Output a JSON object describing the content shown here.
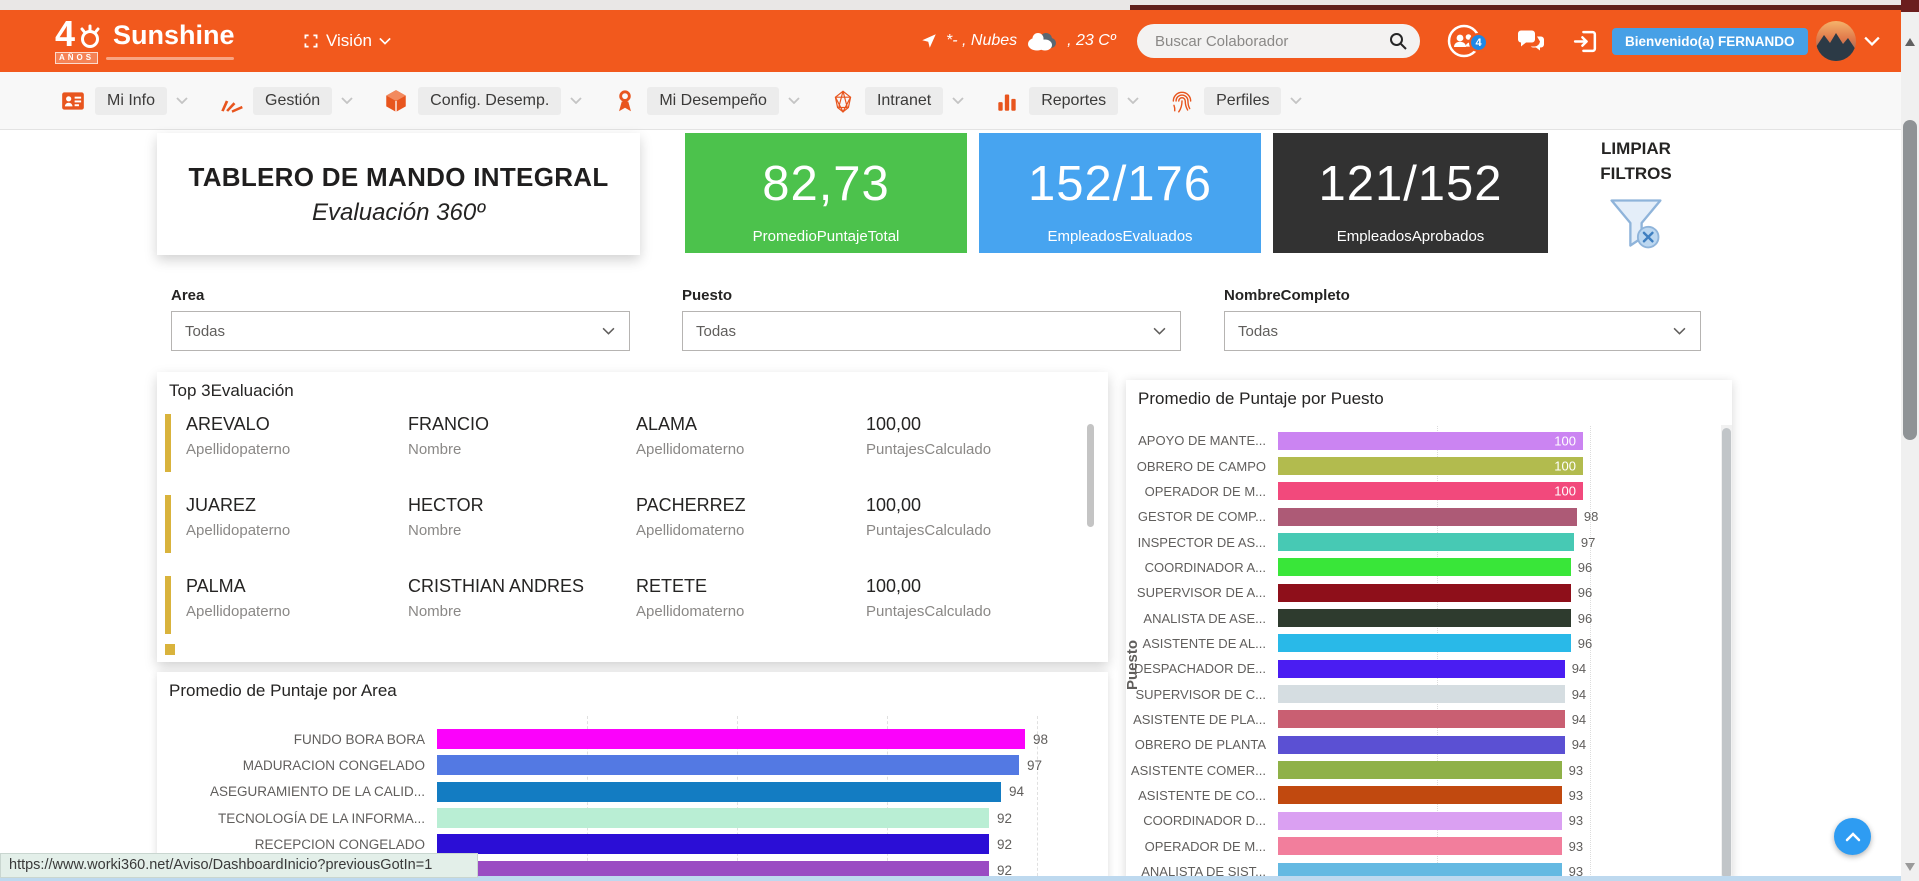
{
  "header": {
    "logo": {
      "number": "4",
      "name": "Sunshine",
      "years": "AÑOS"
    },
    "vision": "Visión",
    "weather": {
      "part1": "*- , Nubes",
      "part2": ", 23 Cº"
    },
    "search": {
      "placeholder": "Buscar Colaborador"
    },
    "notifications_badge": "4",
    "welcome": "Bienvenido(a) FERNANDO",
    "accent_color": "#f2591d"
  },
  "nav": {
    "items": [
      {
        "id": "mi-info",
        "label": "Mi Info",
        "icon": "id-card"
      },
      {
        "id": "gestion",
        "label": "Gestión",
        "icon": "fan"
      },
      {
        "id": "config-desemp",
        "label": "Config. Desemp.",
        "icon": "cube"
      },
      {
        "id": "mi-desempeno",
        "label": "Mi Desempeño",
        "icon": "medal"
      },
      {
        "id": "intranet",
        "label": "Intranet",
        "icon": "globe"
      },
      {
        "id": "reportes",
        "label": "Reportes",
        "icon": "bar-chart"
      },
      {
        "id": "perfiles",
        "label": "Perfiles",
        "icon": "fingerprint"
      }
    ]
  },
  "dashboard": {
    "title": "TABLERO DE MANDO INTEGRAL",
    "subtitle": "Evaluación 360º"
  },
  "kpis": [
    {
      "id": "promedio",
      "value": "82,73",
      "label": "PromedioPuntajeTotal",
      "color": "#4cc24c"
    },
    {
      "id": "evaluados",
      "value": "152/176",
      "label": "EmpleadosEvaluados",
      "color": "#47a4f0"
    },
    {
      "id": "aprobados",
      "value": "121/152",
      "label": "EmpleadosAprobados",
      "color": "#323232"
    }
  ],
  "filters": {
    "clear_line1": "LIMPIAR",
    "clear_line2": "FILTROS",
    "items": [
      {
        "id": "area",
        "label": "Area",
        "value": "Todas"
      },
      {
        "id": "puesto",
        "label": "Puesto",
        "value": "Todas"
      },
      {
        "id": "nombre",
        "label": "NombreCompleto",
        "value": "Todas"
      }
    ]
  },
  "chart_data": [
    {
      "id": "top3",
      "type": "table",
      "title": "Top 3Evaluación",
      "accent_color": "#d9b33c",
      "columns": [
        "Apellidopaterno",
        "Nombre",
        "Apellidomaterno",
        "PuntajesCalculado"
      ],
      "rows": [
        [
          "AREVALO",
          "FRANCIO",
          "ALAMA",
          "100,00"
        ],
        [
          "JUAREZ",
          "HECTOR",
          "PACHERREZ",
          "100,00"
        ],
        [
          "PALMA",
          "CRISTHIAN ANDRES",
          "RETETE",
          "100,00"
        ]
      ]
    },
    {
      "id": "area",
      "type": "bar",
      "orientation": "horizontal",
      "title": "Promedio de Puntaje por Area",
      "xlim": [
        0,
        100
      ],
      "grid": true,
      "categories": [
        "FUNDO BORA BORA",
        "MADURACION CONGELADO",
        "ASEGURAMIENTO DE LA CALID...",
        "TECNOLOGÍA DE LA INFORMA...",
        "RECEPCION CONGELADO",
        ""
      ],
      "values": [
        98,
        97,
        94,
        92,
        92,
        92
      ],
      "colors": [
        "#fb02fb",
        "#5379e3",
        "#137cc2",
        "#b9eed4",
        "#2b0ed6",
        "#9a4cc3"
      ]
    },
    {
      "id": "puesto",
      "type": "bar",
      "orientation": "horizontal",
      "title": "Promedio de Puntaje por Puesto",
      "ylabel": "Puesto",
      "xlim": [
        0,
        100
      ],
      "grid": true,
      "categories": [
        "APOYO DE MANTE...",
        "OBRERO DE CAMPO",
        "OPERADOR DE M...",
        "GESTOR DE COMP...",
        "INSPECTOR DE AS...",
        "COORDINADOR A...",
        "SUPERVISOR DE A...",
        "ANALISTA DE ASE...",
        "ASISTENTE DE AL...",
        "DESPACHADOR DE...",
        "SUPERVISOR DE C...",
        "ASISTENTE DE PLA...",
        "OBRERO DE PLANTA",
        "ASISTENTE COMER...",
        "ASISTENTE DE CO...",
        "COORDINADOR D...",
        "OPERADOR DE M...",
        "ANALISTA DE SIST..."
      ],
      "values": [
        100,
        100,
        100,
        98,
        97,
        96,
        96,
        96,
        96,
        94,
        94,
        94,
        94,
        93,
        93,
        93,
        93,
        93
      ],
      "colors": [
        "#cb84f2",
        "#b2bb4e",
        "#f2497c",
        "#ad5a76",
        "#47c9b4",
        "#39e639",
        "#8e0f1a",
        "#2e3b2e",
        "#29b9e8",
        "#4a1df2",
        "#d5dde1",
        "#c95f72",
        "#5b50d3",
        "#8fb148",
        "#c1490f",
        "#daa0f2",
        "#f27e9c",
        "#64b9e2"
      ]
    }
  ],
  "status": {
    "url": "https://www.worki360.net/Aviso/DashboardInicio?previousGotIn=1"
  }
}
